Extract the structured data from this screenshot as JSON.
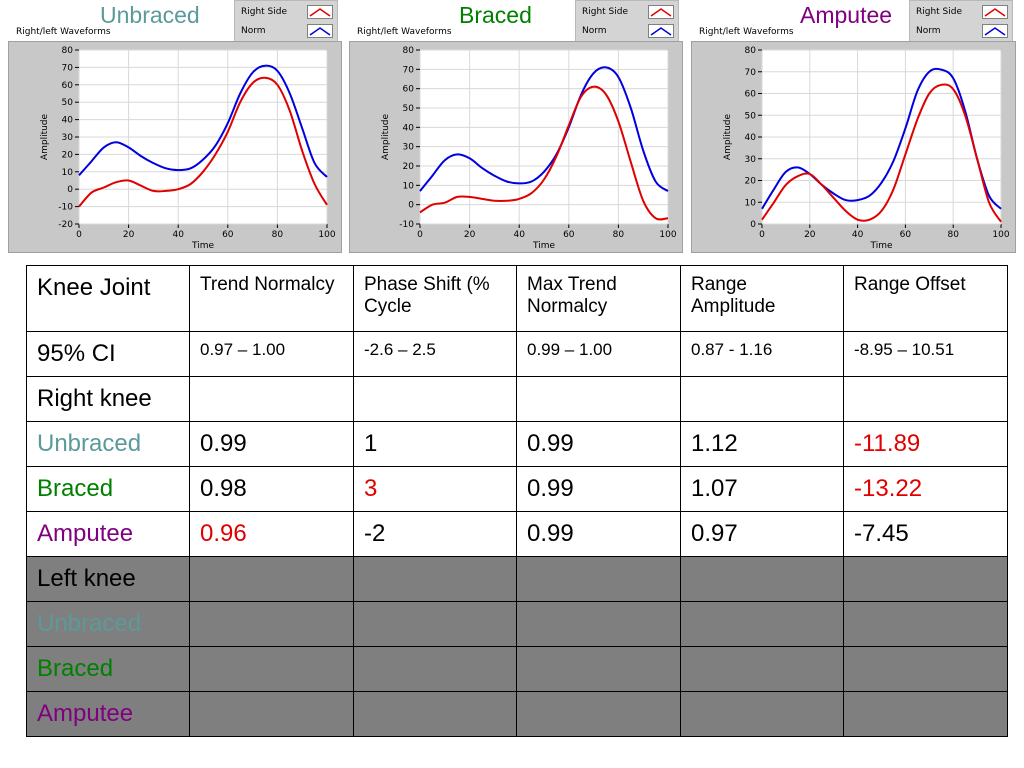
{
  "panels": [
    {
      "title": "Unbraced",
      "title_color": "#5c9a9a",
      "waveform_label": "Right/left Waveforms",
      "legend": [
        {
          "label": "Right Side",
          "color": "#e00000"
        },
        {
          "label": "Norm",
          "color": "#0000e0"
        }
      ]
    },
    {
      "title": "Braced",
      "title_color": "#008000",
      "waveform_label": "Right/left Waveforms",
      "legend": [
        {
          "label": "Right Side",
          "color": "#e00000"
        },
        {
          "label": "Norm",
          "color": "#0000e0"
        }
      ]
    },
    {
      "title": "Amputee",
      "title_color": "#800080",
      "waveform_label": "Right/left Waveforms",
      "legend": [
        {
          "label": "Right Side",
          "color": "#e00000"
        },
        {
          "label": "Norm",
          "color": "#0000e0"
        }
      ]
    }
  ],
  "chart_data": [
    {
      "type": "line",
      "title": "Unbraced",
      "xlabel": "Time",
      "ylabel": "Amplitude",
      "xlim": [
        0,
        100
      ],
      "ylim": [
        -20,
        80
      ],
      "xticks": [
        0,
        20,
        40,
        60,
        80,
        100
      ],
      "yticks": [
        -20,
        -10,
        0,
        10,
        20,
        30,
        40,
        50,
        60,
        70,
        80
      ],
      "grid": true,
      "series": [
        {
          "name": "Norm",
          "color": "#0000e0",
          "x": [
            0,
            5,
            10,
            15,
            20,
            25,
            30,
            35,
            40,
            45,
            50,
            55,
            60,
            65,
            70,
            75,
            80,
            85,
            90,
            95,
            100
          ],
          "y": [
            8,
            16,
            24,
            27,
            24,
            19,
            15,
            12,
            11,
            12,
            17,
            25,
            38,
            55,
            67,
            71,
            68,
            55,
            35,
            15,
            7
          ]
        },
        {
          "name": "Right Side",
          "color": "#e00000",
          "x": [
            0,
            5,
            10,
            15,
            20,
            25,
            30,
            35,
            40,
            45,
            50,
            55,
            60,
            65,
            70,
            75,
            80,
            85,
            90,
            95,
            100
          ],
          "y": [
            -10,
            -2,
            1,
            4,
            5,
            2,
            -1,
            -1,
            0,
            3,
            10,
            20,
            33,
            50,
            61,
            64,
            60,
            45,
            22,
            3,
            -9
          ]
        }
      ]
    },
    {
      "type": "line",
      "title": "Braced",
      "xlabel": "Time",
      "ylabel": "Amplitude",
      "xlim": [
        0,
        100
      ],
      "ylim": [
        -10,
        80
      ],
      "xticks": [
        0,
        20,
        40,
        60,
        80,
        100
      ],
      "yticks": [
        -10,
        0,
        10,
        20,
        30,
        40,
        50,
        60,
        70,
        80
      ],
      "grid": true,
      "series": [
        {
          "name": "Norm",
          "color": "#0000e0",
          "x": [
            0,
            5,
            10,
            15,
            20,
            25,
            30,
            35,
            40,
            45,
            50,
            55,
            60,
            65,
            70,
            75,
            80,
            85,
            90,
            95,
            100
          ],
          "y": [
            7,
            15,
            23,
            26,
            24,
            19,
            15,
            12,
            11,
            12,
            17,
            26,
            40,
            57,
            68,
            71,
            66,
            50,
            28,
            12,
            7
          ]
        },
        {
          "name": "Right Side",
          "color": "#e00000",
          "x": [
            0,
            5,
            10,
            15,
            20,
            25,
            30,
            35,
            40,
            45,
            50,
            55,
            60,
            65,
            70,
            75,
            80,
            85,
            90,
            95,
            100
          ],
          "y": [
            -4,
            0,
            1,
            4,
            4,
            3,
            2,
            2,
            3,
            6,
            13,
            25,
            41,
            56,
            61,
            57,
            43,
            22,
            2,
            -7,
            -7
          ]
        }
      ]
    },
    {
      "type": "line",
      "title": "Amputee",
      "xlabel": "Time",
      "ylabel": "Amplitude",
      "xlim": [
        0,
        100
      ],
      "ylim": [
        0,
        80
      ],
      "xticks": [
        0,
        20,
        40,
        60,
        80,
        100
      ],
      "yticks": [
        0,
        10,
        20,
        30,
        40,
        50,
        60,
        70,
        80
      ],
      "grid": true,
      "series": [
        {
          "name": "Norm",
          "color": "#0000e0",
          "x": [
            0,
            5,
            10,
            15,
            20,
            25,
            30,
            35,
            40,
            45,
            50,
            55,
            60,
            65,
            70,
            75,
            80,
            85,
            90,
            95,
            100
          ],
          "y": [
            7,
            16,
            24,
            26,
            23,
            18,
            14,
            11,
            11,
            13,
            19,
            29,
            44,
            61,
            70,
            71,
            67,
            52,
            30,
            13,
            7
          ]
        },
        {
          "name": "Right Side",
          "color": "#e00000",
          "x": [
            0,
            5,
            10,
            15,
            20,
            25,
            30,
            35,
            40,
            45,
            50,
            55,
            60,
            65,
            70,
            75,
            80,
            85,
            90,
            95,
            100
          ],
          "y": [
            2,
            10,
            18,
            22,
            23,
            18,
            12,
            6,
            2,
            2,
            6,
            16,
            32,
            48,
            60,
            64,
            62,
            50,
            30,
            10,
            1
          ]
        }
      ]
    }
  ],
  "table": {
    "header": [
      "Knee Joint",
      "Trend Normalcy",
      "Phase Shift (% Cycle",
      "Max Trend Normalcy",
      "Range Amplitude",
      "Range Offset"
    ],
    "ci_row": [
      "95% CI",
      "0.97 – 1.00",
      "-2.6 – 2.5",
      "0.99 – 1.00",
      "0.87 - 1.16",
      "-8.95 – 10.51"
    ],
    "right_knee_label": "Right knee",
    "right_rows": [
      {
        "label": "Unbraced",
        "values": [
          "0.99",
          "1",
          "0.99",
          "1.12",
          "-11.89"
        ]
      },
      {
        "label": "Braced",
        "values": [
          "0.98",
          "3",
          "0.99",
          "1.07",
          "-13.22"
        ]
      },
      {
        "label": "Amputee",
        "values": [
          "0.96",
          "-2",
          "0.99",
          "0.97",
          "-7.45"
        ]
      }
    ],
    "left_knee_label": "Left knee",
    "left_rows": [
      {
        "label": "Unbraced"
      },
      {
        "label": "Braced"
      },
      {
        "label": "Amputee"
      }
    ],
    "colors": {
      "unbraced": "#5c9a9a",
      "braced": "#008000",
      "amputee": "#800080",
      "highlight": "#e00000",
      "grey_fill": "#7f7f7f"
    }
  }
}
